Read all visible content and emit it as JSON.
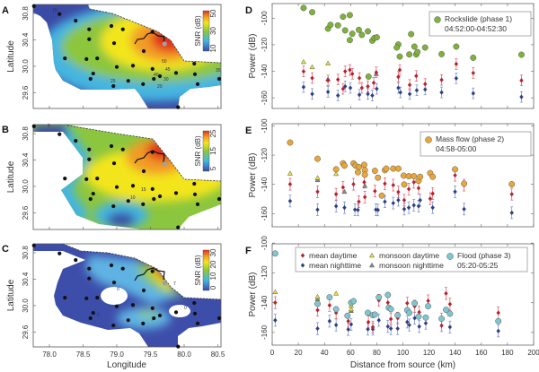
{
  "panels": {
    "A": "A",
    "B": "B",
    "C": "C",
    "D": "D",
    "E": "E",
    "F": "F"
  },
  "maps": {
    "xlabel": "Longitude",
    "ylabel": "Latitude",
    "lon_ticks": [
      "78.0",
      "78.5",
      "79.0",
      "79.5",
      "80.0",
      "80.5"
    ],
    "lat_ticks": [
      "30.8",
      "30.4",
      "30.0",
      "29.6"
    ],
    "colorbar_label": "SNR (dB)",
    "colorbar_ticks": {
      "A": [
        "50",
        "30",
        "10"
      ],
      "B": [
        "25",
        "15",
        "5"
      ],
      "C": [
        "30",
        "20",
        "10",
        "0"
      ]
    },
    "contour_labels": {
      "A": [
        "15",
        "50",
        "45",
        "40",
        "35",
        "30",
        "25",
        "20"
      ],
      "B": [
        "5",
        "15",
        "10"
      ],
      "C": [
        "0",
        "7",
        "0",
        "0",
        "7"
      ]
    },
    "source": {
      "lon": 79.71,
      "lat": 30.34,
      "color": "#9aa4a8"
    },
    "stations": [
      [
        77.77,
        30.91
      ],
      [
        78.15,
        30.79
      ],
      [
        78.39,
        30.69
      ],
      [
        78.59,
        30.56
      ],
      [
        78.59,
        30.41
      ],
      [
        78.23,
        30.12
      ],
      [
        78.55,
        30.11
      ],
      [
        78.71,
        30.12
      ],
      [
        78.92,
        30.61
      ],
      [
        79.09,
        30.56
      ],
      [
        78.96,
        30.35
      ],
      [
        79.0,
        29.99
      ],
      [
        79.24,
        30.01
      ],
      [
        79.4,
        30.23
      ],
      [
        79.53,
        30.52
      ],
      [
        79.53,
        29.96
      ],
      [
        79.55,
        29.81
      ],
      [
        79.64,
        29.85
      ],
      [
        79.88,
        29.9
      ],
      [
        80.15,
        30.04
      ],
      [
        80.2,
        29.73
      ],
      [
        80.16,
        29.88
      ],
      [
        78.61,
        29.81
      ],
      [
        78.65,
        29.89
      ],
      [
        78.95,
        29.7
      ],
      [
        79.17,
        29.78
      ],
      [
        79.39,
        29.73
      ],
      [
        79.91,
        29.38
      ],
      [
        80.52,
        29.81
      ]
    ]
  },
  "chart_data": [
    {
      "panel": "D",
      "type": "scatter",
      "xlabel": "",
      "ylabel": "Power (dB)",
      "xlim": [
        0,
        200
      ],
      "ylim": [
        -168,
        -89
      ],
      "y_ticks": [
        "-100",
        "-120",
        "-140",
        "-160"
      ],
      "error_db": 4,
      "legend": {
        "label": "Rockslide (phase 1)",
        "time": "04:52:00-04:52:30",
        "position": "top-right"
      },
      "phase_color": "#7fb23a",
      "phase": [
        [
          24.0,
          -92.3
        ],
        [
          30.6,
          -95.5
        ],
        [
          42.7,
          -107.9
        ],
        [
          44.6,
          -105.0
        ],
        [
          50.3,
          -105.4
        ],
        [
          54.2,
          -98.9
        ],
        [
          59.4,
          -97.7
        ],
        [
          55.8,
          -109.2
        ],
        [
          61.3,
          -111.7
        ],
        [
          59.4,
          -116.5
        ],
        [
          66.3,
          -108.8
        ],
        [
          68.6,
          -112.6
        ],
        [
          73.2,
          -109.9
        ],
        [
          76.6,
          -116.9
        ],
        [
          78.2,
          -114.9
        ],
        [
          80.0,
          -114.4
        ],
        [
          96.5,
          -119.8
        ],
        [
          95.3,
          -122.1
        ],
        [
          97.6,
          -128.9
        ],
        [
          106.3,
          -112.0
        ],
        [
          104.9,
          -127.3
        ],
        [
          108.8,
          -121.4
        ],
        [
          110.2,
          -127.3
        ],
        [
          111.1,
          -125.5
        ],
        [
          117.0,
          -122.1
        ],
        [
          129.6,
          -127.1
        ],
        [
          140.8,
          -121.4
        ],
        [
          153.8,
          -129.8
        ],
        [
          190.7,
          -127.5
        ],
        [
          73.7,
          -144.0
        ]
      ],
      "mean_daytime": [
        [
          24.0,
          -140.1
        ],
        [
          30.6,
          -145.1
        ],
        [
          42.7,
          -146.9
        ],
        [
          50.3,
          -146.2
        ],
        [
          54.2,
          -153.2
        ],
        [
          55.8,
          -140.1
        ],
        [
          59.4,
          -139.0
        ],
        [
          61.3,
          -141.9
        ],
        [
          66.7,
          -145.1
        ],
        [
          68.6,
          -152.5
        ],
        [
          73.2,
          -151.4
        ],
        [
          77.7,
          -148.7
        ],
        [
          79.6,
          -140.8
        ],
        [
          96.5,
          -144.2
        ],
        [
          97.6,
          -139.0
        ],
        [
          105.2,
          -150.3
        ],
        [
          110.2,
          -143.5
        ],
        [
          117.0,
          -149.6
        ],
        [
          129.6,
          -146.5
        ],
        [
          140.8,
          -134.5
        ],
        [
          153.8,
          -141.3
        ],
        [
          190.7,
          -146.9
        ]
      ],
      "mean_nighttime": [
        [
          24.0,
          -151.9
        ],
        [
          30.6,
          -157.1
        ],
        [
          42.7,
          -155.5
        ],
        [
          50.3,
          -158.2
        ],
        [
          55.8,
          -151.4
        ],
        [
          59.8,
          -152.5
        ],
        [
          66.7,
          -157.7
        ],
        [
          73.2,
          -157.1
        ],
        [
          76.6,
          -158.2
        ],
        [
          80.0,
          -153.2
        ],
        [
          96.5,
          -152.5
        ],
        [
          98.1,
          -155.9
        ],
        [
          105.2,
          -157.1
        ],
        [
          110.6,
          -154.3
        ],
        [
          117.0,
          -153.7
        ],
        [
          129.6,
          -155.9
        ],
        [
          140.8,
          -145.3
        ],
        [
          153.8,
          -156.6
        ],
        [
          190.7,
          -159.3
        ]
      ],
      "monsoon_daytime": [
        [
          24.0,
          -132.9
        ],
        [
          30.6,
          -136.8
        ],
        [
          42.7,
          -134.0
        ]
      ],
      "monsoon_nighttime": [
        [
          42.7,
          -146.0
        ],
        [
          79.6,
          -142.0
        ]
      ]
    },
    {
      "panel": "E",
      "type": "scatter",
      "xlabel": "",
      "ylabel": "Power (dB)",
      "xlim": [
        0,
        200
      ],
      "ylim": [
        -169,
        -98.5
      ],
      "y_ticks": [
        "-100",
        "-120",
        "-140",
        "-160"
      ],
      "error_db": 4,
      "legend": {
        "label": "Mass flow (phase 2)",
        "time": "04:58-05:00",
        "position": "top-right"
      },
      "phase_color": "#e8a73a",
      "phase": [
        [
          13.7,
          -111.4
        ],
        [
          34.7,
          -122.5
        ],
        [
          48.9,
          -129.7
        ],
        [
          54.2,
          -125.6
        ],
        [
          55.3,
          -127.2
        ],
        [
          62.2,
          -125.6
        ],
        [
          63.8,
          -127.2
        ],
        [
          66.3,
          -128.2
        ],
        [
          65.6,
          -131.7
        ],
        [
          70.4,
          -126.6
        ],
        [
          70.9,
          -130.3
        ],
        [
          70.9,
          -133.4
        ],
        [
          78.6,
          -130.7
        ],
        [
          80.9,
          -135.4
        ],
        [
          86.2,
          -130.3
        ],
        [
          87.3,
          -129.2
        ],
        [
          92.6,
          -129.2
        ],
        [
          96.5,
          -129.2
        ],
        [
          100.6,
          -134.0
        ],
        [
          104.5,
          -134.4
        ],
        [
          108.4,
          -134.4
        ],
        [
          101.0,
          -140.1
        ],
        [
          112.0,
          -137.5
        ],
        [
          113.2,
          -134.8
        ],
        [
          120.9,
          -132.3
        ],
        [
          122.8,
          -134.8
        ],
        [
          139.9,
          -129.7
        ],
        [
          146.8,
          -139.5
        ],
        [
          183.3,
          -139.9
        ],
        [
          83.9,
          -147.7
        ]
      ],
      "mean_daytime": [
        [
          13.7,
          -139.9
        ],
        [
          34.7,
          -145.0
        ],
        [
          48.9,
          -146.7
        ],
        [
          54.2,
          -142.0
        ],
        [
          62.2,
          -139.9
        ],
        [
          66.3,
          -151.8
        ],
        [
          70.4,
          -138.5
        ],
        [
          70.9,
          -148.7
        ],
        [
          78.6,
          -144.6
        ],
        [
          86.2,
          -139.5
        ],
        [
          92.6,
          -140.5
        ],
        [
          96.5,
          -145.2
        ],
        [
          101.0,
          -150.8
        ],
        [
          104.5,
          -143.2
        ],
        [
          108.4,
          -138.5
        ],
        [
          112.0,
          -142.6
        ],
        [
          120.9,
          -149.8
        ],
        [
          122.8,
          -146.3
        ],
        [
          139.9,
          -133.8
        ],
        [
          146.8,
          -140.5
        ],
        [
          183.3,
          -146.7
        ]
      ],
      "mean_nighttime": [
        [
          13.7,
          -151.4
        ],
        [
          34.7,
          -157.3
        ],
        [
          48.9,
          -154.9
        ],
        [
          55.3,
          -155.9
        ],
        [
          63.3,
          -157.3
        ],
        [
          65.6,
          -157.5
        ],
        [
          79.3,
          -157.3
        ],
        [
          80.9,
          -157.5
        ],
        [
          86.2,
          -151.8
        ],
        [
          92.6,
          -152.8
        ],
        [
          96.5,
          -150.8
        ],
        [
          101.0,
          -156.9
        ],
        [
          104.5,
          -155.9
        ],
        [
          108.4,
          -154.3
        ],
        [
          112.0,
          -154.9
        ],
        [
          113.2,
          -150.8
        ],
        [
          122.8,
          -155.9
        ],
        [
          139.9,
          -145.0
        ],
        [
          146.8,
          -156.9
        ],
        [
          183.3,
          -159.4
        ]
      ],
      "monsoon_daytime": [
        [
          13.7,
          -132.5
        ],
        [
          34.7,
          -135.5
        ],
        [
          48.9,
          -132.8
        ]
      ],
      "monsoon_nighttime": [
        [
          34.7,
          -137.0
        ],
        [
          55.3,
          -145.0
        ],
        [
          70.9,
          -141.0
        ]
      ]
    },
    {
      "panel": "F",
      "type": "scatter",
      "xlabel": "Distance from source (km)",
      "ylabel": "Power (dB)",
      "xlim": [
        0,
        200
      ],
      "ylim": [
        -168.5,
        -100.5
      ],
      "x_ticks": [
        "0",
        "20",
        "40",
        "60",
        "80",
        "100",
        "120",
        "140",
        "160",
        "180",
        "200"
      ],
      "y_ticks": [
        "-100",
        "-120",
        "-140",
        "-160"
      ],
      "error_db": 4,
      "legend": {
        "label": "Flood (phase 3)",
        "time": "05:20-05:25",
        "position": "top",
        "mean_daytime": "mean daytime",
        "mean_nighttime": "mean nighttime",
        "monsoon_daytime": "monsoon daytime",
        "monsoon_nighttime": "monsoon nighttime"
      },
      "phase_color": "#7fc6cf",
      "phase": [
        [
          2.3,
          -107.0
        ],
        [
          34.7,
          -140.8
        ],
        [
          43.9,
          -136.4
        ],
        [
          48.9,
          -144.4
        ],
        [
          57.6,
          -148.8
        ],
        [
          60.4,
          -140.0
        ],
        [
          62.2,
          -139.0
        ],
        [
          73.2,
          -146.8
        ],
        [
          77.0,
          -148.4
        ],
        [
          78.6,
          -148.0
        ],
        [
          81.6,
          -136.4
        ],
        [
          88.5,
          -134.8
        ],
        [
          89.2,
          -143.4
        ],
        [
          90.8,
          -144.4
        ],
        [
          96.0,
          -148.4
        ],
        [
          103.3,
          -145.0
        ],
        [
          104.9,
          -146.8
        ],
        [
          109.0,
          -140.4
        ],
        [
          112.0,
          -149.4
        ],
        [
          117.5,
          -150.0
        ],
        [
          119.3,
          -142.4
        ],
        [
          129.6,
          -150.8
        ],
        [
          133.0,
          -144.8
        ],
        [
          136.0,
          -147.4
        ],
        [
          173.0,
          -152.4
        ]
      ],
      "mean_daytime": [
        [
          2.3,
          -140.0
        ],
        [
          34.7,
          -145.0
        ],
        [
          43.9,
          -141.8
        ],
        [
          48.9,
          -146.8
        ],
        [
          58.2,
          -152.4
        ],
        [
          73.6,
          -153.0
        ],
        [
          77.0,
          -156.4
        ],
        [
          81.6,
          -138.4
        ],
        [
          88.5,
          -140.0
        ],
        [
          90.8,
          -151.0
        ],
        [
          96.0,
          -150.4
        ],
        [
          103.3,
          -140.4
        ],
        [
          109.0,
          -142.4
        ],
        [
          112.5,
          -146.4
        ],
        [
          119.3,
          -138.8
        ],
        [
          129.6,
          -155.4
        ],
        [
          133.0,
          -133.8
        ],
        [
          136.0,
          -141.0
        ],
        [
          173.0,
          -146.8
        ]
      ],
      "mean_nighttime": [
        [
          2.3,
          -151.8
        ],
        [
          34.7,
          -157.4
        ],
        [
          43.9,
          -152.4
        ],
        [
          48.9,
          -155.0
        ],
        [
          58.2,
          -158.0
        ],
        [
          60.4,
          -154.6
        ],
        [
          73.2,
          -157.8
        ],
        [
          77.0,
          -157.8
        ],
        [
          81.6,
          -151.8
        ],
        [
          88.5,
          -156.0
        ],
        [
          90.8,
          -157.4
        ],
        [
          96.0,
          -157.4
        ],
        [
          103.3,
          -153.0
        ],
        [
          104.9,
          -155.0
        ],
        [
          109.0,
          -150.4
        ],
        [
          112.5,
          -156.0
        ],
        [
          117.5,
          -153.8
        ],
        [
          129.6,
          -151.0
        ],
        [
          136.0,
          -156.4
        ],
        [
          173.0,
          -159.0
        ]
      ],
      "monsoon_daytime": [
        [
          2.3,
          -132.8
        ],
        [
          34.7,
          -136.0
        ],
        [
          48.9,
          -133.8
        ],
        [
          60.4,
          -142.0
        ],
        [
          60.4,
          -144.4
        ]
      ],
      "monsoon_nighttime": [
        [
          34.7,
          -137.5
        ],
        [
          60.4,
          -145.5
        ]
      ]
    }
  ],
  "colors": {
    "daytime": "#b8202e",
    "nighttime": "#2f3f86",
    "monsoon_day": "#e9e23a",
    "monsoon_night": "#8a8a8a",
    "error_day": "#e0555f",
    "error_night": "#6f86c4"
  }
}
